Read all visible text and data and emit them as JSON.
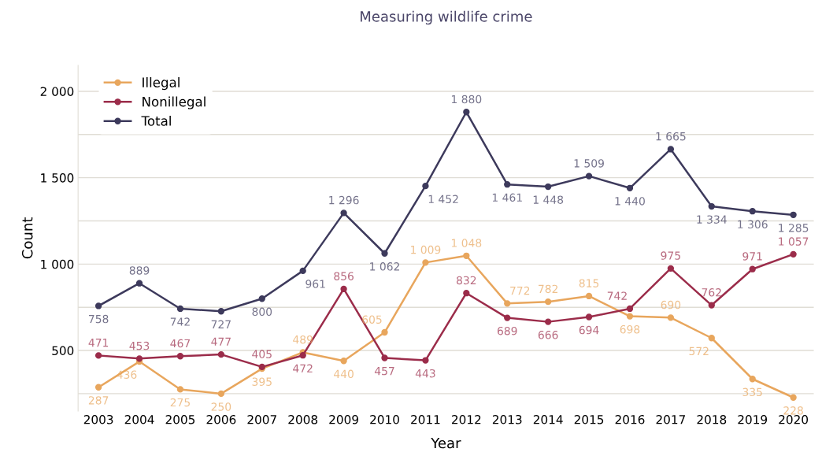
{
  "chart_data": {
    "type": "line",
    "title": "Measuring wildlife crime",
    "xlabel": "Year",
    "ylabel": "Count",
    "categories": [
      "2003",
      "2004",
      "2005",
      "2006",
      "2007",
      "2008",
      "2009",
      "2010",
      "2011",
      "2012",
      "2013",
      "2014",
      "2015",
      "2016",
      "2017",
      "2018",
      "2019",
      "2020"
    ],
    "series": [
      {
        "name": "Illegal",
        "color": "#e8a65d",
        "values": [
          287,
          436,
          275,
          250,
          395,
          489,
          440,
          605,
          1009,
          1048,
          772,
          782,
          815,
          698,
          690,
          572,
          335,
          228
        ],
        "value_labels": [
          "287",
          "436",
          "275",
          "250",
          "395",
          "489",
          "440",
          "605",
          "1 009",
          "1 048",
          "772",
          "782",
          "815",
          "698",
          "690",
          "572",
          "335",
          "228"
        ]
      },
      {
        "name": "Nonillegal",
        "color": "#9b2c4a",
        "values": [
          471,
          453,
          467,
          477,
          405,
          472,
          856,
          457,
          443,
          832,
          689,
          666,
          694,
          742,
          975,
          762,
          971,
          1057
        ],
        "value_labels": [
          "471",
          "453",
          "467",
          "477",
          "405",
          "472",
          "856",
          "457",
          "443",
          "832",
          "689",
          "666",
          "694",
          "742",
          "975",
          "762",
          "971",
          "1 057"
        ]
      },
      {
        "name": "Total",
        "color": "#3d3a5c",
        "values": [
          758,
          889,
          742,
          727,
          800,
          961,
          1296,
          1062,
          1452,
          1880,
          1461,
          1448,
          1509,
          1440,
          1665,
          1334,
          1306,
          1285
        ],
        "value_labels": [
          "758",
          "889",
          "742",
          "727",
          "800",
          "961",
          "1 296",
          "1 062",
          "1 452",
          "1 880",
          "1 461",
          "1 448",
          "1 509",
          "1 440",
          "1 665",
          "1 334",
          "1 306",
          "1 285"
        ]
      }
    ],
    "ylim": [
      150,
      2150
    ],
    "yticks": [
      {
        "value": 250,
        "label": null
      },
      500,
      {
        "value": 750,
        "label": null
      },
      {
        "value": 1000,
        "label": "1 000"
      },
      {
        "value": 1250,
        "label": null
      },
      {
        "value": 1500,
        "label": "1 500"
      },
      {
        "value": 1750,
        "label": null
      },
      {
        "value": 2000,
        "label": "2 000"
      }
    ],
    "grid": "y",
    "legend": "top left",
    "marker": "circle",
    "line_style": "solid"
  }
}
